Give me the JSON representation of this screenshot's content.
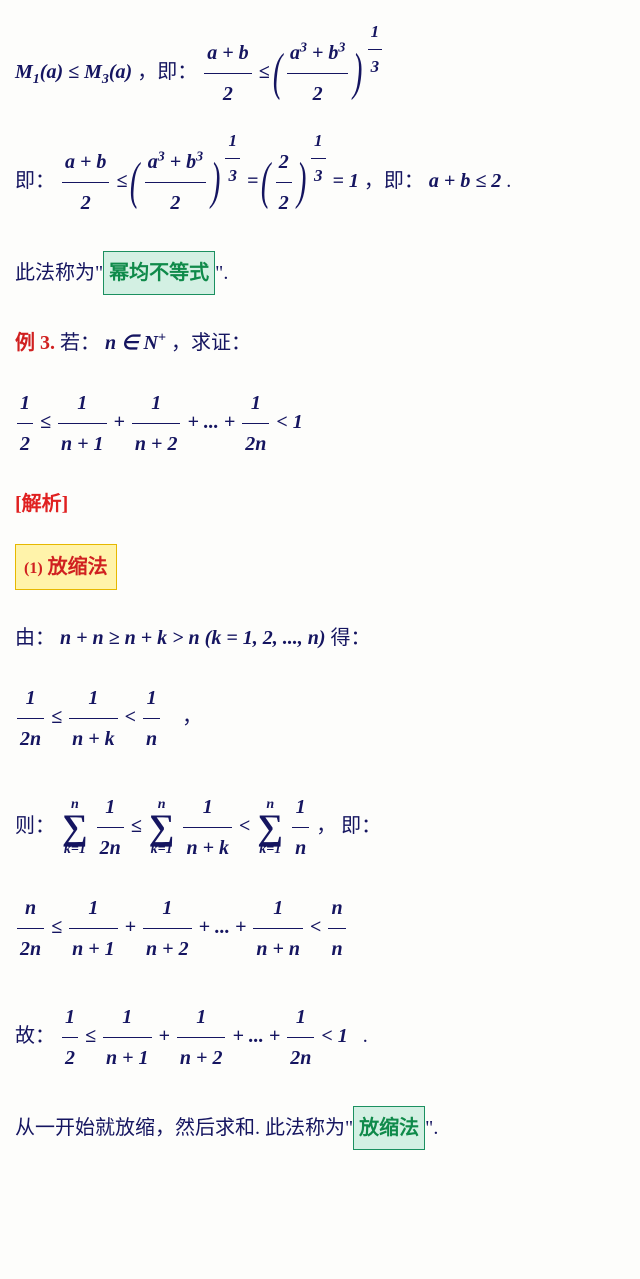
{
  "l1_left": "M",
  "l1_sub1": "1",
  "l1_arg": "(a) ≤ M",
  "l1_sub3": "3",
  "l1_arg2": "(a)",
  "comma_ji": "，即：",
  "f_ab2_num": "a + b",
  "f_ab2_den": "2",
  "le": " ≤ ",
  "f_a3b3_num": "a",
  "cube": "3",
  "plus": " + b",
  "f_a3b3_den": "2",
  "pow13_num": "1",
  "pow13_den": "3",
  "ji_prefix": "即：",
  "eq": " = ",
  "f_22_num": "2",
  "f_22_den": "2",
  "eq1": " = 1",
  "ji_ab2": "，即：",
  "ab_le_2": "a + b ≤ 2",
  "dot": " .",
  "law1_pre": "此法称为\"",
  "law1_box": "幂均不等式",
  "law1_post": "\".",
  "ex3_label": "例 3.",
  "ex3_ruo": "  若：",
  "ex3_n": "n ∈ N",
  "ex3_plus": "+",
  "ex3_qz": "，求证：",
  "half_num": "1",
  "half_den": "2",
  "f_np1_num": "1",
  "f_np1_den": "n + 1",
  "f_np2_num": "1",
  "f_np2_den": "n + 2",
  "dots": " + ... + ",
  "f_2n_num": "1",
  "f_2n_den": "2n",
  "lt1": " < 1",
  "analysis": "[解析]",
  "method1_num": "(1)",
  "method1_txt": "  放缩法",
  "you": "由：",
  "ineq_nn": "n + n ≥ n + k > n    (k = 1, 2, ..., n)",
  "de": " 得：",
  "f_12n_num": "1",
  "f_12n_den": "2n",
  "f_npk_num": "1",
  "f_npk_den": "n + k",
  "f_1n_num": "1",
  "f_1n_den": "n",
  "comma2": "，",
  "ze": "则：",
  "sum_top": "n",
  "sum_bot": "k=1",
  "ji2": "，  即：",
  "f_n2n_num": "n",
  "f_n2n_den": "2n",
  "f_npn_num": "1",
  "f_npn_den": "n + n",
  "f_nn_num": "n",
  "f_nn_den": "n",
  "gu": "故：",
  "final_pre": "从一开始就放缩，然后求和.  此法称为\"",
  "final_box": "放缩法",
  "final_post": "\".",
  "lt": " < ",
  "plus_sign": " + "
}
